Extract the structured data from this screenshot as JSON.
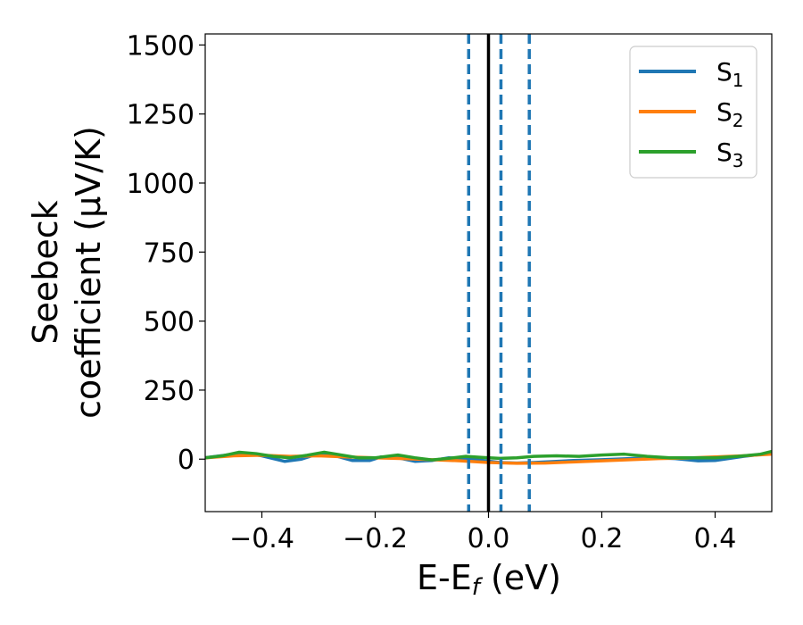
{
  "chart_data": {
    "type": "line",
    "xlabel": "E-E",
    "xlabel_sub": "f",
    "xlabel_unit": " (eV)",
    "ylabel_line1": "Seebeck",
    "ylabel_line2": "coefficient  (μV/K)",
    "xlim": [
      -0.5,
      0.5
    ],
    "ylim": [
      -190,
      1540
    ],
    "xticks": [
      -0.4,
      -0.2,
      0.0,
      0.2,
      0.4
    ],
    "xtick_labels": [
      "−0.4",
      "−0.2",
      "0.0",
      "0.2",
      "0.4"
    ],
    "yticks": [
      0,
      250,
      500,
      750,
      1000,
      1250,
      1500
    ],
    "ytick_labels": [
      "0",
      "250",
      "500",
      "750",
      "1000",
      "1250",
      "1500"
    ],
    "grid": false,
    "legend_position": "top-right",
    "fermi_line": {
      "x": 0.0,
      "color": "#000000"
    },
    "dashed_lines": {
      "x": [
        -0.035,
        0.022,
        0.072
      ],
      "color": "#1f77b4"
    },
    "series": [
      {
        "name": "S",
        "sub": "1",
        "color": "#1f77b4",
        "x": [
          -0.5,
          -0.45,
          -0.43,
          -0.4,
          -0.36,
          -0.33,
          -0.3,
          -0.27,
          -0.24,
          -0.21,
          -0.19,
          -0.16,
          -0.13,
          -0.1,
          -0.07,
          -0.04,
          -0.01,
          0.02,
          0.05,
          0.08,
          0.1,
          0.15,
          0.2,
          0.25,
          0.3,
          0.33,
          0.37,
          0.4,
          0.45,
          0.5
        ],
        "y": [
          5,
          18,
          22,
          12,
          -8,
          0,
          20,
          12,
          -5,
          -5,
          8,
          5,
          -8,
          -5,
          5,
          2,
          -5,
          -12,
          -14,
          -12,
          -10,
          -5,
          -2,
          2,
          5,
          2,
          -6,
          -5,
          10,
          22
        ]
      },
      {
        "name": "S",
        "sub": "2",
        "color": "#ff7f0e",
        "x": [
          -0.5,
          -0.45,
          -0.4,
          -0.35,
          -0.3,
          -0.25,
          -0.2,
          -0.15,
          -0.1,
          -0.05,
          0.0,
          0.05,
          0.1,
          0.15,
          0.2,
          0.25,
          0.3,
          0.35,
          0.4,
          0.45,
          0.5
        ],
        "y": [
          5,
          12,
          14,
          10,
          12,
          8,
          5,
          2,
          -2,
          -6,
          -12,
          -15,
          -14,
          -10,
          -6,
          -2,
          2,
          4,
          8,
          12,
          18
        ]
      },
      {
        "name": "S",
        "sub": "3",
        "color": "#2ca02c",
        "x": [
          -0.5,
          -0.47,
          -0.44,
          -0.41,
          -0.38,
          -0.35,
          -0.32,
          -0.29,
          -0.26,
          -0.23,
          -0.2,
          -0.16,
          -0.13,
          -0.1,
          -0.07,
          -0.04,
          -0.01,
          0.02,
          0.05,
          0.08,
          0.12,
          0.16,
          0.2,
          0.24,
          0.28,
          0.32,
          0.36,
          0.4,
          0.44,
          0.48,
          0.5
        ],
        "y": [
          5,
          12,
          25,
          20,
          10,
          5,
          14,
          25,
          15,
          5,
          5,
          15,
          5,
          -3,
          3,
          10,
          6,
          3,
          5,
          10,
          12,
          10,
          15,
          18,
          10,
          5,
          5,
          5,
          10,
          18,
          28
        ]
      }
    ]
  }
}
